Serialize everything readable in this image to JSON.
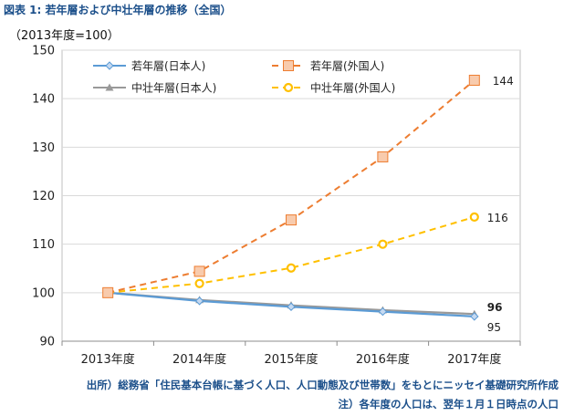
{
  "figure": {
    "title": "図表 1: 若年層および中壮年層の推移（全国）",
    "unit": "（2013年度=100）",
    "source": "出所）総務省「住民基本台帳に基づく人口、人口動態及び世帯数」をもとにニッセイ基礎研究所作成",
    "note": "注）各年度の人口は、翌年１月１日時点の人口"
  },
  "chart_data": {
    "type": "line",
    "title": "図表 1: 若年層および中壮年層の推移（全国）",
    "ylabel": "（2013年度=100）",
    "xlabel": "",
    "categories": [
      "2013年度",
      "2014年度",
      "2015年度",
      "2016年度",
      "2017年度"
    ],
    "ylim": [
      90,
      150
    ],
    "yticks": [
      90,
      100,
      110,
      120,
      130,
      140,
      150
    ],
    "grid": true,
    "legend_position": "top",
    "series": [
      {
        "name": "若年層(日本人)",
        "values": [
          100,
          98.3,
          97.1,
          96.1,
          95.1
        ],
        "color": "#5b9bd5",
        "marker": "diamond",
        "dash": "solid",
        "end_label": "95",
        "end_label_bold": false
      },
      {
        "name": "若年層(外国人)",
        "values": [
          100,
          104.4,
          115.0,
          128.0,
          143.8
        ],
        "color": "#ed7d31",
        "marker": "square",
        "dash": "dashed",
        "end_label": "144",
        "end_label_bold": false
      },
      {
        "name": "中壮年層(日本人)",
        "values": [
          100,
          98.5,
          97.4,
          96.4,
          95.6
        ],
        "color": "#999999",
        "marker": "triangle",
        "dash": "solid",
        "end_label": "96",
        "end_label_bold": true
      },
      {
        "name": "中壮年層(外国人)",
        "values": [
          100,
          101.9,
          105.1,
          110.0,
          115.6
        ],
        "color": "#ffc000",
        "marker": "circle",
        "dash": "dashed",
        "end_label": "116",
        "end_label_bold": false
      }
    ]
  }
}
